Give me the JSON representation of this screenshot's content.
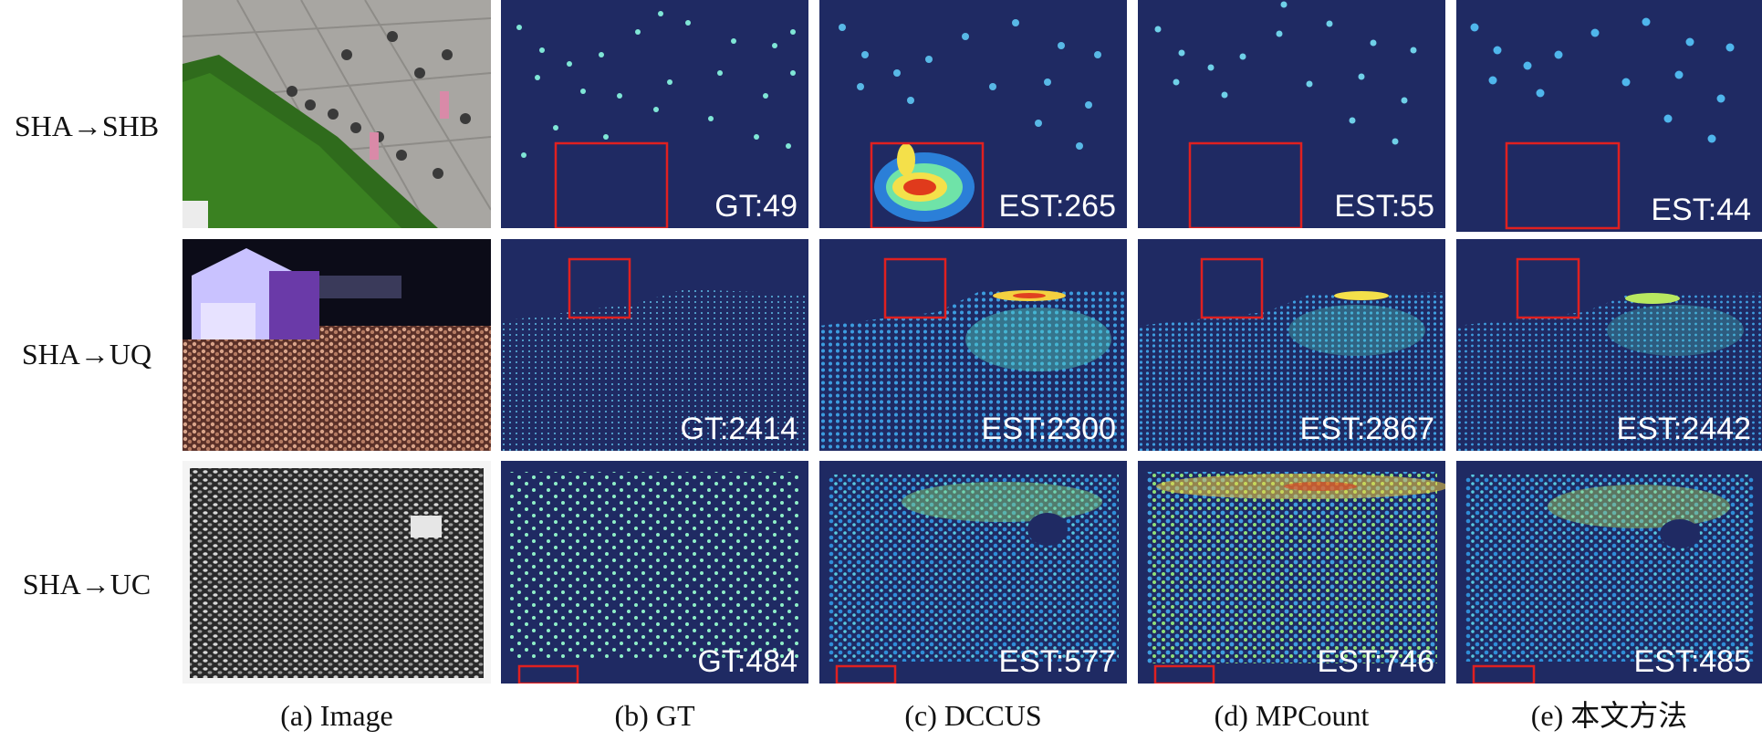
{
  "rows": [
    {
      "label": "SHA→SHB",
      "counts": [
        "GT:49",
        "EST:265",
        "EST:55",
        "EST:44"
      ]
    },
    {
      "label": "SHA→UQ",
      "counts": [
        "GT:2414",
        "EST:2300",
        "EST:2867",
        "EST:2442"
      ]
    },
    {
      "label": "SHA→UC",
      "counts": [
        "GT:484",
        "EST:577",
        "EST:746",
        "EST:485"
      ]
    }
  ],
  "columns": [
    "(a) Image",
    "(b) GT",
    "(c) DCCUS",
    "(d) MPCount",
    "(e) 本文方法"
  ],
  "colors": {
    "density_bg": "#1f2a63",
    "highlight_box": "#e02020"
  }
}
